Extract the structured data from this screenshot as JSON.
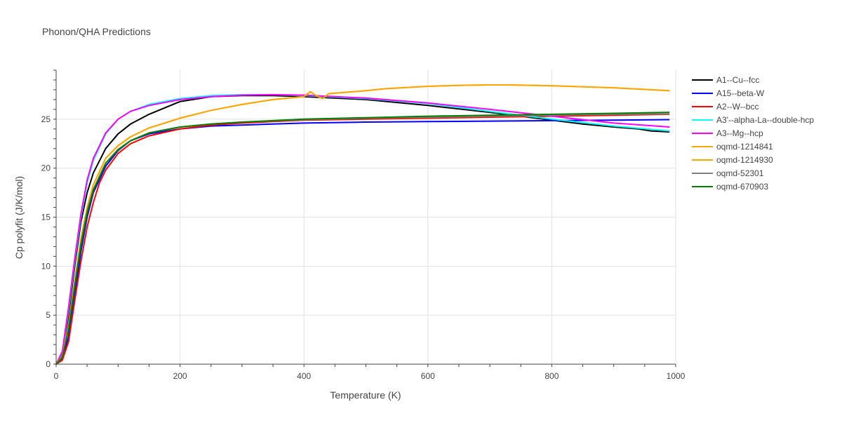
{
  "chart_data": {
    "type": "line",
    "title": "Phonon/QHA Predictions",
    "xlabel": "Temperature (K)",
    "ylabel": "Cp polyfit (J/K/mol)",
    "xlim": [
      0,
      1000
    ],
    "ylim": [
      0,
      30
    ],
    "xticks": [
      0,
      200,
      400,
      600,
      800,
      1000
    ],
    "yticks": [
      0,
      5,
      10,
      15,
      20,
      25
    ],
    "grid": true,
    "legend_position": "right",
    "series": [
      {
        "name": "A1--Cu--fcc",
        "color": "#000000",
        "x": [
          0,
          10,
          20,
          30,
          40,
          50,
          60,
          80,
          100,
          120,
          150,
          200,
          250,
          300,
          350,
          400,
          500,
          600,
          700,
          800,
          850,
          900,
          940,
          960,
          990
        ],
        "y": [
          0,
          1.0,
          5.0,
          10.0,
          14.5,
          17.5,
          19.5,
          22.0,
          23.5,
          24.5,
          25.5,
          26.8,
          27.3,
          27.4,
          27.4,
          27.3,
          27.0,
          26.4,
          25.7,
          24.9,
          24.5,
          24.2,
          24.0,
          23.8,
          23.7
        ]
      },
      {
        "name": "A15--beta-W",
        "color": "#0000ff",
        "x": [
          0,
          10,
          20,
          30,
          40,
          50,
          60,
          80,
          100,
          120,
          150,
          200,
          250,
          300,
          400,
          500,
          600,
          700,
          800,
          900,
          990
        ],
        "y": [
          0,
          0.6,
          2.8,
          7.0,
          11.5,
          15.0,
          17.5,
          20.2,
          21.8,
          22.8,
          23.5,
          24.0,
          24.3,
          24.4,
          24.6,
          24.7,
          24.75,
          24.8,
          24.85,
          24.9,
          24.95
        ]
      },
      {
        "name": "A2--W--bcc",
        "color": "#ff0000",
        "x": [
          0,
          10,
          20,
          30,
          40,
          50,
          60,
          70,
          80,
          100,
          120,
          150,
          200,
          250,
          300,
          400,
          500,
          600,
          700,
          800,
          900,
          990
        ],
        "y": [
          0,
          0.4,
          2.3,
          6.5,
          10.5,
          14.0,
          16.5,
          18.5,
          19.8,
          21.5,
          22.5,
          23.3,
          24.0,
          24.4,
          24.6,
          24.9,
          25.0,
          25.1,
          25.2,
          25.3,
          25.4,
          25.5
        ]
      },
      {
        "name": "A3'--alpha-La--double-hcp",
        "color": "#00ffff",
        "x": [
          0,
          10,
          20,
          30,
          40,
          50,
          60,
          80,
          100,
          120,
          150,
          200,
          250,
          300,
          350,
          400,
          500,
          600,
          700,
          800,
          900,
          990
        ],
        "y": [
          0,
          1.2,
          5.5,
          10.5,
          15.0,
          18.5,
          20.8,
          23.5,
          25.0,
          25.8,
          26.5,
          27.1,
          27.4,
          27.5,
          27.5,
          27.4,
          27.1,
          26.6,
          25.8,
          25.0,
          24.3,
          23.8
        ]
      },
      {
        "name": "A3--Mg--hcp",
        "color": "#ff00ff",
        "x": [
          0,
          10,
          20,
          30,
          40,
          50,
          60,
          80,
          100,
          120,
          150,
          200,
          250,
          300,
          350,
          400,
          500,
          600,
          700,
          800,
          900,
          990
        ],
        "y": [
          0,
          1.3,
          5.8,
          10.8,
          15.3,
          18.8,
          21.0,
          23.6,
          25.0,
          25.8,
          26.4,
          27.0,
          27.3,
          27.45,
          27.5,
          27.45,
          27.15,
          26.65,
          26.0,
          25.3,
          24.6,
          24.2
        ]
      },
      {
        "name": "oqmd-1214841",
        "color": "#ffa500",
        "x": [
          0,
          10,
          20,
          30,
          40,
          50,
          60,
          80,
          100,
          120,
          150,
          200,
          250,
          300,
          350,
          400,
          410,
          420,
          430,
          440,
          500,
          530,
          600,
          650,
          700,
          730,
          800,
          900,
          990
        ],
        "y": [
          0,
          0.8,
          4.0,
          8.5,
          12.8,
          16.0,
          18.3,
          21.0,
          22.3,
          23.2,
          24.1,
          25.1,
          25.9,
          26.5,
          27.0,
          27.3,
          27.8,
          27.4,
          27.1,
          27.6,
          27.9,
          28.1,
          28.35,
          28.45,
          28.5,
          28.5,
          28.4,
          28.2,
          27.9
        ]
      },
      {
        "name": "oqmd-1214930",
        "color": "#ffa500",
        "x": [
          0,
          10,
          20,
          30,
          40,
          50,
          60,
          80,
          100,
          120,
          150,
          200,
          250,
          300,
          350,
          400,
          410,
          420,
          430,
          440,
          500,
          530,
          600,
          650,
          700,
          730,
          800,
          900,
          990
        ],
        "y": [
          0,
          0.8,
          4.0,
          8.5,
          12.8,
          16.0,
          18.3,
          21.0,
          22.3,
          23.2,
          24.1,
          25.1,
          25.9,
          26.5,
          27.0,
          27.3,
          27.8,
          27.4,
          27.1,
          27.6,
          27.9,
          28.1,
          28.35,
          28.45,
          28.5,
          28.5,
          28.4,
          28.2,
          27.9
        ]
      },
      {
        "name": "oqmd-52301",
        "color": "#808080",
        "x": [
          0,
          10,
          20,
          30,
          40,
          50,
          60,
          80,
          100,
          120,
          150,
          200,
          250,
          300,
          400,
          500,
          600,
          700,
          800,
          900,
          990
        ],
        "y": [
          0,
          0.7,
          3.6,
          8.0,
          12.2,
          15.5,
          17.8,
          20.5,
          21.9,
          22.8,
          23.6,
          24.2,
          24.5,
          24.7,
          24.95,
          25.1,
          25.2,
          25.3,
          25.4,
          25.5,
          25.55
        ]
      },
      {
        "name": "oqmd-670903",
        "color": "#008000",
        "x": [
          0,
          10,
          20,
          30,
          40,
          50,
          60,
          80,
          100,
          120,
          150,
          200,
          250,
          300,
          400,
          500,
          600,
          700,
          800,
          900,
          990
        ],
        "y": [
          0,
          0.7,
          3.6,
          8.0,
          12.2,
          15.5,
          17.8,
          20.5,
          21.9,
          22.8,
          23.6,
          24.2,
          24.5,
          24.7,
          25.0,
          25.15,
          25.3,
          25.4,
          25.5,
          25.6,
          25.7
        ]
      }
    ]
  }
}
